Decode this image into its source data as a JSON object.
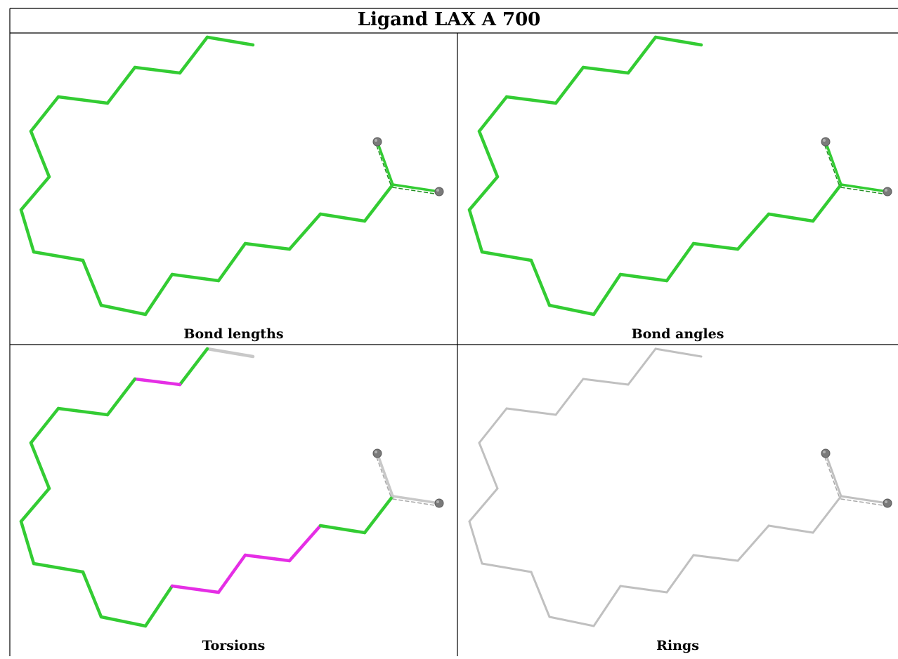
{
  "title": "Ligand LAX A 700",
  "panels": [
    {
      "label": "Bond lengths",
      "colors": {
        "default": "#33cc33"
      },
      "highlights": []
    },
    {
      "label": "Bond angles",
      "colors": {
        "default": "#33cc33"
      },
      "highlights": []
    },
    {
      "label": "Torsions",
      "colors": {
        "default": "#33cc33",
        "highlight": "#e52ee5",
        "tail": "#c8c8c8"
      },
      "highlights": [
        [
          2,
          3
        ],
        [
          13,
          14
        ],
        [
          14,
          15
        ],
        [
          15,
          16
        ],
        [
          16,
          17
        ]
      ]
    },
    {
      "label": "Rings",
      "colors": {
        "default": "#c0c0c0"
      },
      "highlights": []
    }
  ],
  "colors": {
    "atom": "#7a7a7a",
    "border": "#000000"
  }
}
